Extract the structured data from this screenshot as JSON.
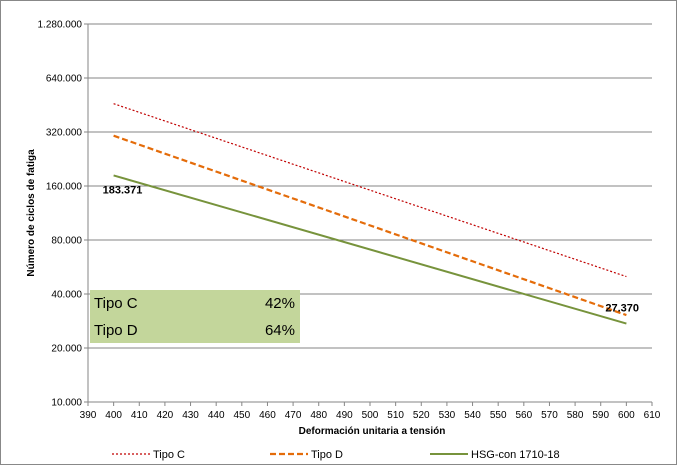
{
  "chart_data": {
    "type": "line",
    "title": "",
    "xlabel": "Deformación unitaria a tensión",
    "ylabel": "Número de ciclos de fatiga",
    "x_ticks": [
      "390",
      "400",
      "410",
      "420",
      "430",
      "440",
      "450",
      "460",
      "470",
      "480",
      "490",
      "500",
      "510",
      "520",
      "530",
      "540",
      "550",
      "560",
      "570",
      "580",
      "590",
      "600",
      "610"
    ],
    "xlim": [
      390,
      610
    ],
    "y_scale": "log2",
    "y_ticks": [
      {
        "value": 10000,
        "label": "10.000"
      },
      {
        "value": 20000,
        "label": "20.000"
      },
      {
        "value": 40000,
        "label": "40.000"
      },
      {
        "value": 80000,
        "label": "80.000"
      },
      {
        "value": 160000,
        "label": "160.000"
      },
      {
        "value": 320000,
        "label": "320.000"
      },
      {
        "value": 640000,
        "label": "640.000"
      },
      {
        "value": 1280000,
        "label": "1.280.000"
      }
    ],
    "ylim": [
      10000,
      1280000
    ],
    "grid": "horizontal",
    "legend_position": "bottom",
    "series": [
      {
        "name": "Tipo C",
        "color": "#C00000",
        "style": "dotted",
        "x": [
          400,
          600
        ],
        "y": [
          460000,
          50000
        ]
      },
      {
        "name": "Tipo D",
        "color": "#E46C0A",
        "style": "dashed",
        "x": [
          400,
          600
        ],
        "y": [
          305000,
          30500
        ]
      },
      {
        "name": "HSG-con 1710-18",
        "color": "#77933C",
        "style": "solid",
        "x": [
          400,
          600
        ],
        "y": [
          183371,
          27370
        ]
      }
    ],
    "annotations": [
      {
        "text": "183.371",
        "x": 400,
        "y": 183371,
        "anchor": "below-left"
      },
      {
        "text": "27.370",
        "x": 600,
        "y": 27370,
        "anchor": "above"
      }
    ]
  },
  "inset_table": {
    "background": "#C3D69B",
    "rows": [
      {
        "label": "Tipo C",
        "value": "42%"
      },
      {
        "label": "Tipo D",
        "value": "64%"
      }
    ]
  }
}
